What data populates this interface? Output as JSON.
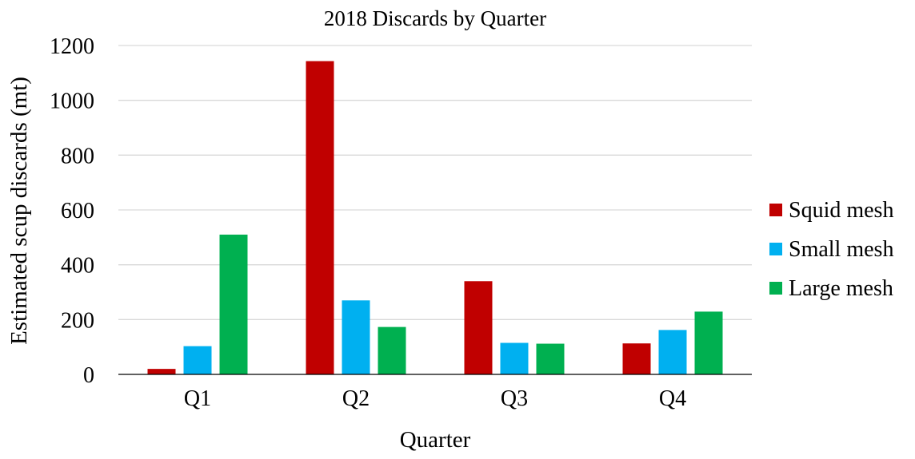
{
  "chart_data": {
    "type": "bar",
    "title": "2018 Discards by Quarter",
    "xlabel": "Quarter",
    "ylabel": "Estimated scup discards (mt)",
    "categories": [
      "Q1",
      "Q2",
      "Q3",
      "Q4"
    ],
    "series": [
      {
        "name": "Squid mesh",
        "color": "#c00000",
        "values": [
          20,
          1143,
          340,
          113
        ]
      },
      {
        "name": "Small mesh",
        "color": "#00b0f0",
        "values": [
          103,
          270,
          115,
          162
        ]
      },
      {
        "name": "Large mesh",
        "color": "#00b050",
        "values": [
          510,
          173,
          112,
          229
        ]
      }
    ],
    "ylim": [
      0,
      1200
    ],
    "yticks": [
      0,
      200,
      400,
      600,
      800,
      1000,
      1200
    ],
    "grid": true,
    "legend_position": "right"
  }
}
